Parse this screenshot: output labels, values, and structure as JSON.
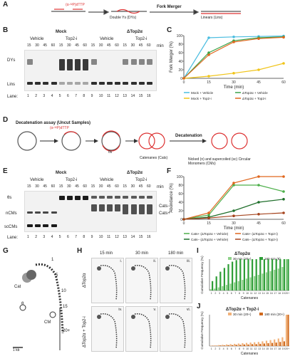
{
  "panels": {
    "A": "A",
    "B": "B",
    "C": "C",
    "D": "D",
    "E": "E",
    "F": "F",
    "G": "G",
    "H": "H",
    "I": "I",
    "J": "J"
  },
  "A": {
    "uvtp": "(α-³²P)dTTP",
    "dys": "Double Ys (DYs)",
    "fork": "Fork Merger",
    "linear": "Linears (Lins)"
  },
  "B": {
    "mock": "Mock",
    "dtop2": "ΔTop2α",
    "vehicle": "Vehicle",
    "top2i": "Top2-i",
    "times": [
      "15",
      "30",
      "45",
      "60"
    ],
    "min": "min",
    "dys": "DYs",
    "lins": "Lins",
    "lane": "Lane:",
    "lanes": [
      "1",
      "2",
      "3",
      "4",
      "5",
      "6",
      "7",
      "8",
      "9",
      "10",
      "11",
      "12",
      "13",
      "14",
      "15",
      "16"
    ]
  },
  "C": {
    "ylabel": "Fork Merger (%)",
    "xlabel": "Time (min)",
    "legend": [
      "Mock + Vehicle",
      "ΔTop2α + Vehicle",
      "Mock + Top2-i",
      "ΔTop2α + Top2-i"
    ]
  },
  "D": {
    "title": "Decatenation assay (Uncut Samples)",
    "uvtp": "(α-³²P)dTTP",
    "os": "θs",
    "cats": "Catenanes (Cats)",
    "decat": "Decatenation",
    "cms": "Nicked (n) and supercoiled (sc) Circular Monomers (CMs)"
  },
  "E": {
    "mock": "Mock",
    "dtop2": "ΔTop2α",
    "vehicle": "Vehicle",
    "top2i": "Top2-i",
    "times": [
      "15",
      "30",
      "45",
      "60"
    ],
    "min": "min",
    "os": "θs",
    "ncms": "nCMs",
    "sccms": "scCMs",
    "catsm": "Cats−",
    "catsp": "Cats+",
    "lane": "Lane:",
    "lanes": [
      "1",
      "2",
      "3",
      "4",
      "5",
      "6",
      "7",
      "8",
      "9",
      "10",
      "11",
      "12",
      "13",
      "14",
      "15",
      "16"
    ]
  },
  "F": {
    "ylabel": "Abundance (%)",
    "xlabel": "Time (min)",
    "legend": [
      "Cats+ (ΔTop2α + Vehicle)",
      "Cats+ (ΔTop2α + Top2-i)",
      "Cats− (ΔTop2α + Vehicle)",
      "Cats− (ΔTop2α + Top2-i)"
    ]
  },
  "G": {
    "cat": "Cat",
    "theta": "θ",
    "cm": "CM",
    "l1": "1",
    "l5": "5",
    "l10": "10",
    "l15": "15",
    "l20": "20+",
    "scale": "1 kb"
  },
  "H": {
    "t15": "15 min",
    "t30": "30 min",
    "t180": "180 min",
    "row1": "ΔTop2α",
    "row2": "ΔTop2α + Top2-i",
    "tags": [
      "i.",
      "ii.",
      "iii.",
      "iv.",
      "v.",
      "vi."
    ]
  },
  "I": {
    "title": "ΔTop2α",
    "legend30": "30 min (20+)",
    "legend180": "180 min (8)",
    "ylabel": "Cumulative Frequency (%)",
    "xlabel": "Catenanes"
  },
  "J": {
    "title": "ΔTop2α + Top2-i",
    "legend30": "30 min (20+)",
    "legend180": "180 min (20+)",
    "ylabel": "Cumulative Frequency (%)",
    "xlabel": "Catenanes"
  },
  "colors": {
    "mockveh": "#4bbde0",
    "dveh": "#3aa34a",
    "mocktop": "#f0c419",
    "dtop": "#e0671e",
    "catsp_veh": "#4daf4a",
    "catsp_top": "#e0671e",
    "catsm_veh": "#1e6e2a",
    "catsm_top": "#a5441e",
    "i30": "#8fd18a",
    "i180": "#2e9e37",
    "j30": "#f2b27a",
    "j180": "#d06a1e"
  },
  "chart_data": [
    {
      "type": "line",
      "title": "",
      "xlabel": "Time (min)",
      "ylabel": "Fork Merger (%)",
      "x": [
        0,
        15,
        30,
        45,
        60
      ],
      "xlim": [
        0,
        60
      ],
      "ylim": [
        0,
        100
      ],
      "series": [
        {
          "name": "Mock + Vehicle",
          "values": [
            0,
            95,
            97,
            98,
            99
          ]
        },
        {
          "name": "ΔTop2α + Vehicle",
          "values": [
            0,
            60,
            88,
            95,
            97
          ]
        },
        {
          "name": "Mock + Top2-i",
          "values": [
            0,
            5,
            12,
            20,
            35
          ]
        },
        {
          "name": "ΔTop2α + Top2-i",
          "values": [
            0,
            55,
            85,
            93,
            96
          ]
        }
      ]
    },
    {
      "type": "line",
      "title": "",
      "xlabel": "Time (min)",
      "ylabel": "Abundance (%)",
      "x": [
        0,
        15,
        30,
        45,
        60
      ],
      "xlim": [
        0,
        60
      ],
      "ylim": [
        0,
        100
      ],
      "series": [
        {
          "name": "Cats+ (ΔTop2α + Vehicle)",
          "values": [
            0,
            10,
            80,
            80,
            65
          ]
        },
        {
          "name": "Cats+ (ΔTop2α + Top2-i)",
          "values": [
            0,
            15,
            85,
            100,
            100
          ]
        },
        {
          "name": "Cats− (ΔTop2α + Vehicle)",
          "values": [
            0,
            5,
            20,
            40,
            47
          ]
        },
        {
          "name": "Cats− (ΔTop2α + Top2-i)",
          "values": [
            0,
            3,
            8,
            12,
            15
          ]
        }
      ]
    },
    {
      "type": "bar",
      "title": "ΔTop2α",
      "xlabel": "Catenanes",
      "ylabel": "Cumulative Frequency (%)",
      "ylim": [
        0,
        100
      ],
      "categories": [
        "1",
        "2",
        "3",
        "4",
        "5",
        "6",
        "7",
        "8",
        "9",
        "10",
        "11",
        "12",
        "13",
        "14",
        "15",
        "16",
        "17",
        "18",
        "19",
        "20+"
      ],
      "series": [
        {
          "name": "30 min (20+)",
          "values": [
            4,
            6,
            10,
            14,
            18,
            22,
            26,
            30,
            34,
            38,
            42,
            46,
            50,
            54,
            58,
            62,
            66,
            70,
            75,
            100
          ]
        },
        {
          "name": "180 min (8)",
          "values": [
            30,
            45,
            60,
            72,
            84,
            92,
            97,
            100,
            100,
            100,
            100,
            100,
            100,
            100,
            100,
            100,
            100,
            100,
            100,
            100
          ]
        }
      ]
    },
    {
      "type": "bar",
      "title": "ΔTop2α + Top2-i",
      "xlabel": "Catenanes",
      "ylabel": "Cumulative Frequency (%)",
      "ylim": [
        0,
        100
      ],
      "categories": [
        "1",
        "2",
        "3",
        "4",
        "5",
        "6",
        "7",
        "8",
        "9",
        "10",
        "11",
        "12",
        "13",
        "14",
        "15",
        "16",
        "17",
        "18",
        "19",
        "20+"
      ],
      "series": [
        {
          "name": "30 min (20+)",
          "values": [
            1,
            2,
            3,
            4,
            5,
            6,
            7,
            8,
            9,
            10,
            11,
            12,
            13,
            15,
            17,
            19,
            21,
            24,
            28,
            100
          ]
        },
        {
          "name": "180 min (20+)",
          "values": [
            1,
            1,
            2,
            2,
            3,
            3,
            4,
            4,
            5,
            5,
            6,
            6,
            7,
            8,
            9,
            10,
            11,
            13,
            15,
            100
          ]
        }
      ]
    }
  ]
}
